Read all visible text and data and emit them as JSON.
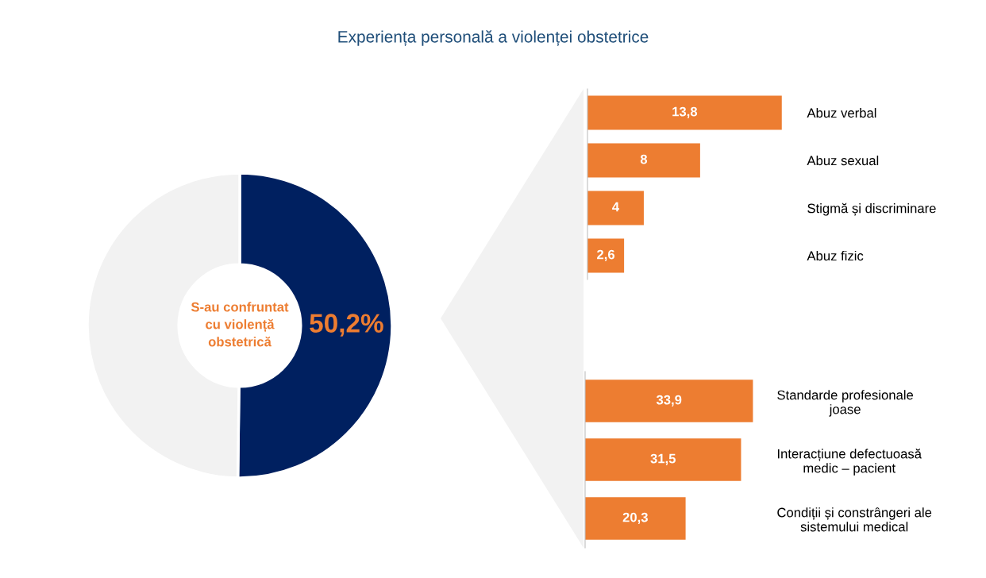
{
  "chart_data": [
    {
      "type": "donut",
      "title": "Experiența personală a violenței obstetrice",
      "categories": [
        "S-au confruntat\ncu violență\nobstetrică",
        null
      ],
      "values": [
        50.2,
        49.8
      ],
      "colors": [
        "#002060",
        "#f2f2f2"
      ],
      "value_labels": [
        "50,2%",
        null
      ],
      "legend": false
    },
    {
      "type": "bar",
      "orientation": "horizontal",
      "categories": [
        "Abuz verbal",
        "Abuz sexual",
        "Stigmă și discriminare",
        "Abuz fizic"
      ],
      "values": [
        13.8,
        8,
        4,
        2.6
      ],
      "value_labels": [
        "13,8",
        "8",
        "4",
        "2,6"
      ],
      "color": "#ed7d31",
      "tick_labels": "y",
      "grid": false,
      "legend": false
    },
    {
      "type": "bar",
      "orientation": "horizontal",
      "categories": [
        "Standarde profesionale\njoase",
        "Interacțiune defectuoasă\nmedic – pacient",
        "Condiții și constrângeri ale\nsistemului medical"
      ],
      "values": [
        33.9,
        31.5,
        20.3
      ],
      "value_labels": [
        "33,9",
        "31,5",
        "20,3"
      ],
      "color": "#ed7d31",
      "tick_labels": "y",
      "grid": false,
      "legend": false
    }
  ]
}
